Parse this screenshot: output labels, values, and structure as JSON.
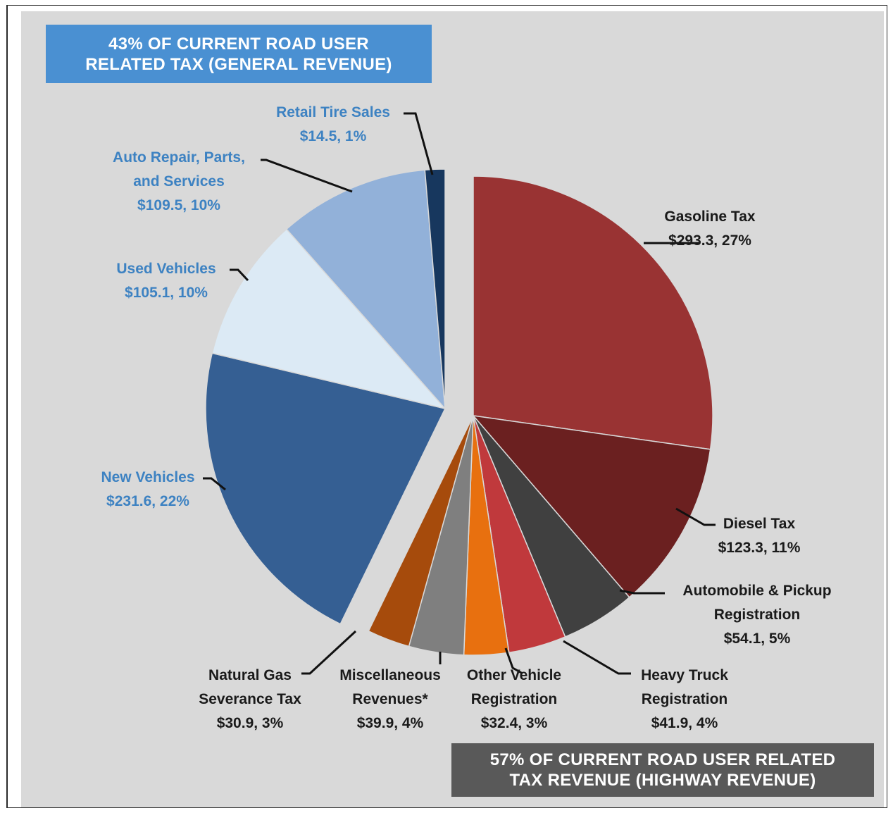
{
  "banners": {
    "general": [
      "43% OF CURRENT  ROAD USER",
      "RELATED  TAX (GENERAL  REVENUE)"
    ],
    "highway": [
      "57% OF CURRENT  ROAD USER RELATED",
      "TAX REVENUE  (HIGHWAY REVENUE)"
    ]
  },
  "colors": {
    "general_banner": "#4a90d2",
    "highway_banner": "#595959",
    "background": "#d9d9d9",
    "general_label_text": "#3d82c2",
    "highway_label_text": "#1a1a1a"
  },
  "chart_data": {
    "type": "pie",
    "exploded_groups": [
      "highway",
      "general"
    ],
    "slices": [
      {
        "name": "Gasoline Tax",
        "value": 293.3,
        "percent": "27%",
        "group": "highway",
        "color": "#993333",
        "label": [
          "Gasoline  Tax",
          "$293.3, 27%"
        ]
      },
      {
        "name": "Diesel Tax",
        "value": 123.3,
        "percent": "11%",
        "group": "highway",
        "color": "#6b2020",
        "label": [
          "Diesel Tax",
          "$123.3, 11%"
        ]
      },
      {
        "name": "Automobile & Pickup Registration",
        "value": 54.1,
        "percent": "5%",
        "group": "highway",
        "color": "#404040",
        "label": [
          "Automobile & Pickup",
          "Registration",
          "$54.1, 5%"
        ]
      },
      {
        "name": "Heavy Truck Registration",
        "value": 41.9,
        "percent": "4%",
        "group": "highway",
        "color": "#c0393c",
        "label": [
          "Heavy Truck",
          "Registration",
          "$41.9, 4%"
        ]
      },
      {
        "name": "Other Vehicle Registration",
        "value": 32.4,
        "percent": "3%",
        "group": "highway",
        "color": "#e8700f",
        "label": [
          "Other Vehicle",
          "Registration",
          "$32.4, 3%"
        ]
      },
      {
        "name": "Miscellaneous Revenues*",
        "value": 39.9,
        "percent": "4%",
        "group": "highway",
        "color": "#7f7f7f",
        "label": [
          "Miscellaneous",
          "Revenues*",
          "$39.9, 4%"
        ]
      },
      {
        "name": "Natural Gas Severance Tax",
        "value": 30.9,
        "percent": "3%",
        "group": "highway",
        "color": "#a64b0c",
        "label": [
          "Natural Gas",
          "Severance Tax",
          "$30.9, 3%"
        ]
      },
      {
        "name": "New Vehicles",
        "value": 231.6,
        "percent": "22%",
        "group": "general",
        "color": "#355f93",
        "label": [
          "New Vehicles",
          "$231.6, 22%"
        ]
      },
      {
        "name": "Used Vehicles",
        "value": 105.1,
        "percent": "10%",
        "group": "general",
        "color": "#dceaf5",
        "label": [
          "Used Vehicles",
          "$105.1, 10%"
        ]
      },
      {
        "name": "Auto Repair, Parts, and Services",
        "value": 109.5,
        "percent": "10%",
        "group": "general",
        "color": "#92b1d9",
        "label": [
          "Auto Repair, Parts,",
          "and Services",
          "$109.5, 10%"
        ]
      },
      {
        "name": "Retail Tire Sales",
        "value": 14.5,
        "percent": "1%",
        "group": "general",
        "color": "#17375e",
        "label": [
          "Retail Tire Sales",
          "$14.5, 1%"
        ]
      }
    ]
  }
}
